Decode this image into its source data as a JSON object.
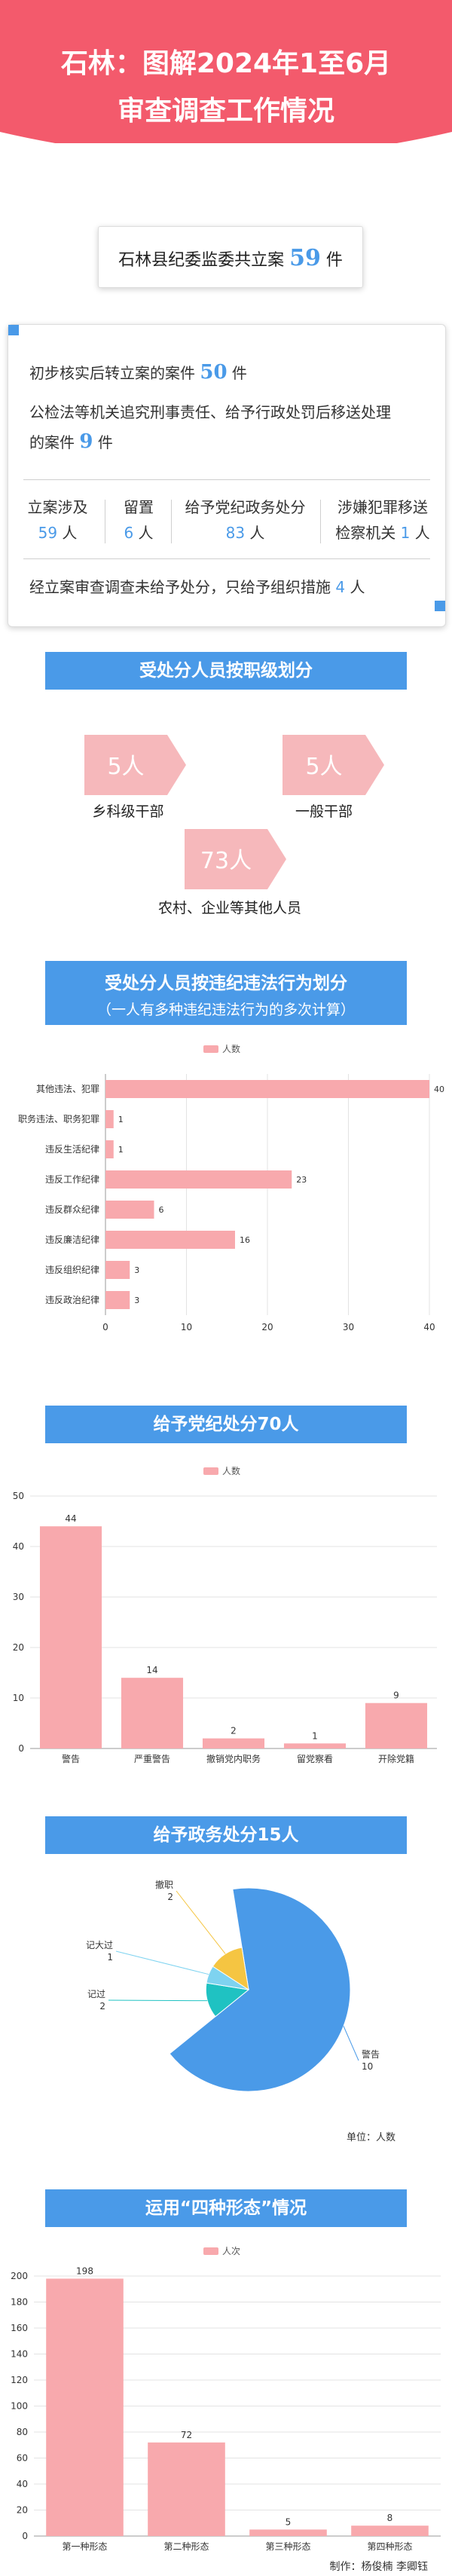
{
  "header": {
    "title_line1": "石林：图解2024年1至6月",
    "title_line2": "审查调查工作情况"
  },
  "summary": {
    "prefix": "石林县纪委监委共立案",
    "num": "59",
    "suffix": "件"
  },
  "detail": {
    "line1_prefix": "初步核实后转立案的案件",
    "line1_num": "50",
    "line1_suffix": "件",
    "line2": "公检法等机关追究刑事责任、给予行政处罚后移送处理",
    "line3_prefix": "的案件",
    "line3_num": "9",
    "line3_suffix": "件",
    "cells": [
      {
        "label": "立案涉及",
        "num": "59",
        "unit": "人"
      },
      {
        "label": "留置",
        "num": "6",
        "unit": "人"
      },
      {
        "label": "给予党纪政务处分",
        "num": "83",
        "unit": "人"
      },
      {
        "label": "涉嫌犯罪移送",
        "label2": "检察机关",
        "num": "1",
        "unit": "人"
      }
    ],
    "footer_prefix": "经立案审查调查未给予处分，只给予组织措施",
    "footer_num": "4",
    "footer_suffix": "人"
  },
  "section_titles": {
    "rank": "受处分人员按职级划分",
    "violation": "受处分人员按违纪违法行为划分",
    "violation_note": "（一人有多种违纪违法行为的多次计算）",
    "party": "给予党纪处分70人",
    "gov": "给予政务处分15人",
    "forms": "运用“四种形态”情况"
  },
  "rank": [
    {
      "value": "5人",
      "label": "乡科级干部"
    },
    {
      "value": "5人",
      "label": "一般干部"
    },
    {
      "value": "73人",
      "label": "农村、企业等其他人员"
    }
  ],
  "colors": {
    "banner": "#f35a6c",
    "blue": "#4a9ae8",
    "pink": "#f8a9ad",
    "pent": "#f6b8bb"
  },
  "chart_data": [
    {
      "type": "bar",
      "orientation": "horizontal",
      "categories": [
        "其他违法、犯罪",
        "职务违法、职务犯罪",
        "违反生活纪律",
        "违反工作纪律",
        "违反群众纪律",
        "违反廉洁纪律",
        "违反组织纪律",
        "违反政治纪律"
      ],
      "series": [
        {
          "name": "人数",
          "values": [
            40,
            1,
            1,
            23,
            6,
            16,
            3,
            3
          ]
        }
      ],
      "xlim": [
        0,
        40
      ],
      "xticks": [
        "0",
        "10",
        "20",
        "30",
        "40"
      ],
      "legend": "top",
      "grid": true
    },
    {
      "type": "bar",
      "categories": [
        "警告",
        "严重警告",
        "撤销党内职务",
        "留党察看",
        "开除党籍"
      ],
      "series": [
        {
          "name": "人数",
          "values": [
            44,
            14,
            2,
            1,
            9
          ]
        }
      ],
      "ylim": [
        0,
        50
      ],
      "yticks": [
        "0",
        "10",
        "20",
        "30",
        "40",
        "50"
      ],
      "legend": "top",
      "grid": true
    },
    {
      "type": "pie",
      "slices": [
        {
          "label": "警告",
          "value": 10,
          "color": "#4a9ae8"
        },
        {
          "label": "记过",
          "value": 2,
          "color": "#1fc2c2"
        },
        {
          "label": "记大过",
          "value": 1,
          "color": "#7ed3f0"
        },
        {
          "label": "撤职",
          "value": 2,
          "color": "#f5c542"
        }
      ],
      "unit_note": "单位：人数"
    },
    {
      "type": "bar",
      "categories": [
        "第一种形态",
        "第二种形态",
        "第三种形态",
        "第四种形态"
      ],
      "series": [
        {
          "name": "人次",
          "values": [
            198,
            72,
            5,
            8
          ]
        }
      ],
      "ylim": [
        0,
        200
      ],
      "yticks": [
        "0",
        "20",
        "40",
        "60",
        "80",
        "100",
        "120",
        "140",
        "160",
        "180",
        "200"
      ],
      "legend": "top",
      "grid": true
    }
  ],
  "credits": "制作：杨俊楠 李卿钰"
}
